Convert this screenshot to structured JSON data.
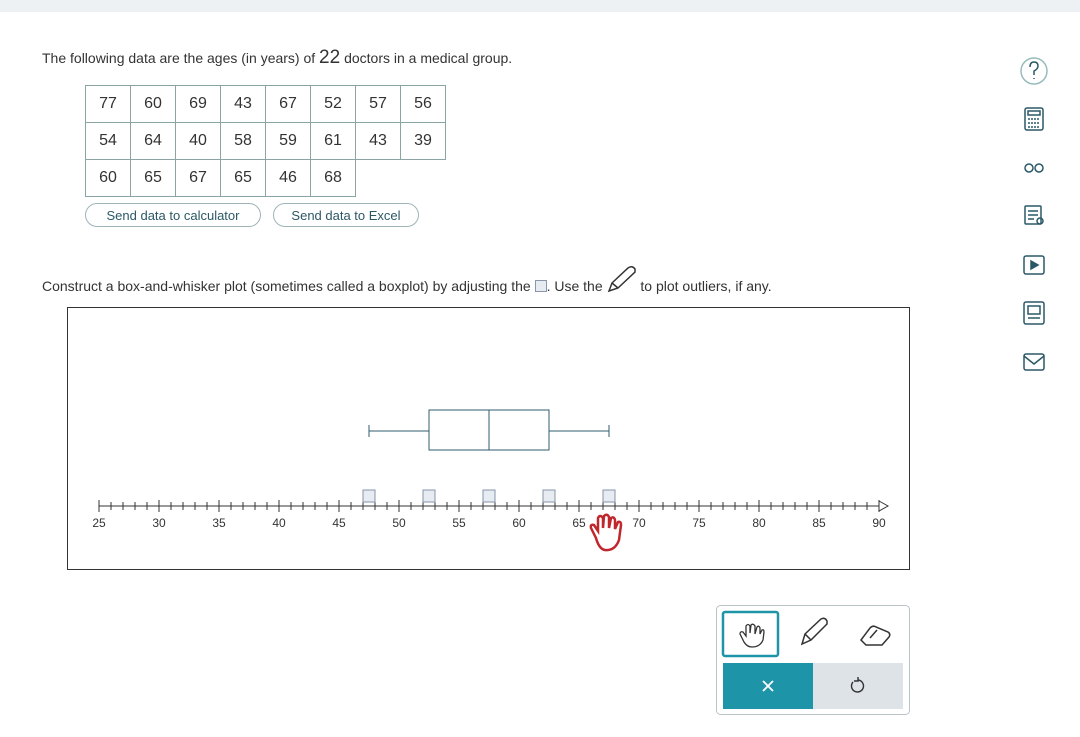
{
  "intro": {
    "before": "The following data are the ages (in years) of",
    "count": 22,
    "after": "doctors in a medical group."
  },
  "table": {
    "rows": [
      [
        77,
        60,
        69,
        43,
        67,
        52,
        57,
        56
      ],
      [
        54,
        64,
        40,
        58,
        59,
        61,
        43,
        39
      ],
      [
        60,
        65,
        67,
        65,
        46,
        68
      ]
    ]
  },
  "buttons": [
    "Send data to calculator",
    "Send data to Excel"
  ],
  "instruction": {
    "part1": "Construct a box-and-whisker plot (sometimes called a boxplot) by adjusting the",
    "part2": ". Use the",
    "part3": "to plot outliers, if any."
  },
  "chart_data": {
    "type": "box",
    "xlim": [
      25,
      90
    ],
    "xticks": [
      25,
      30,
      35,
      40,
      45,
      50,
      55,
      60,
      65,
      70,
      75,
      80,
      85,
      90
    ],
    "min": 47.5,
    "q1": 52.5,
    "median": 57.5,
    "q3": 62.5,
    "max": 67.5,
    "color": "#2f5d6e"
  }
}
